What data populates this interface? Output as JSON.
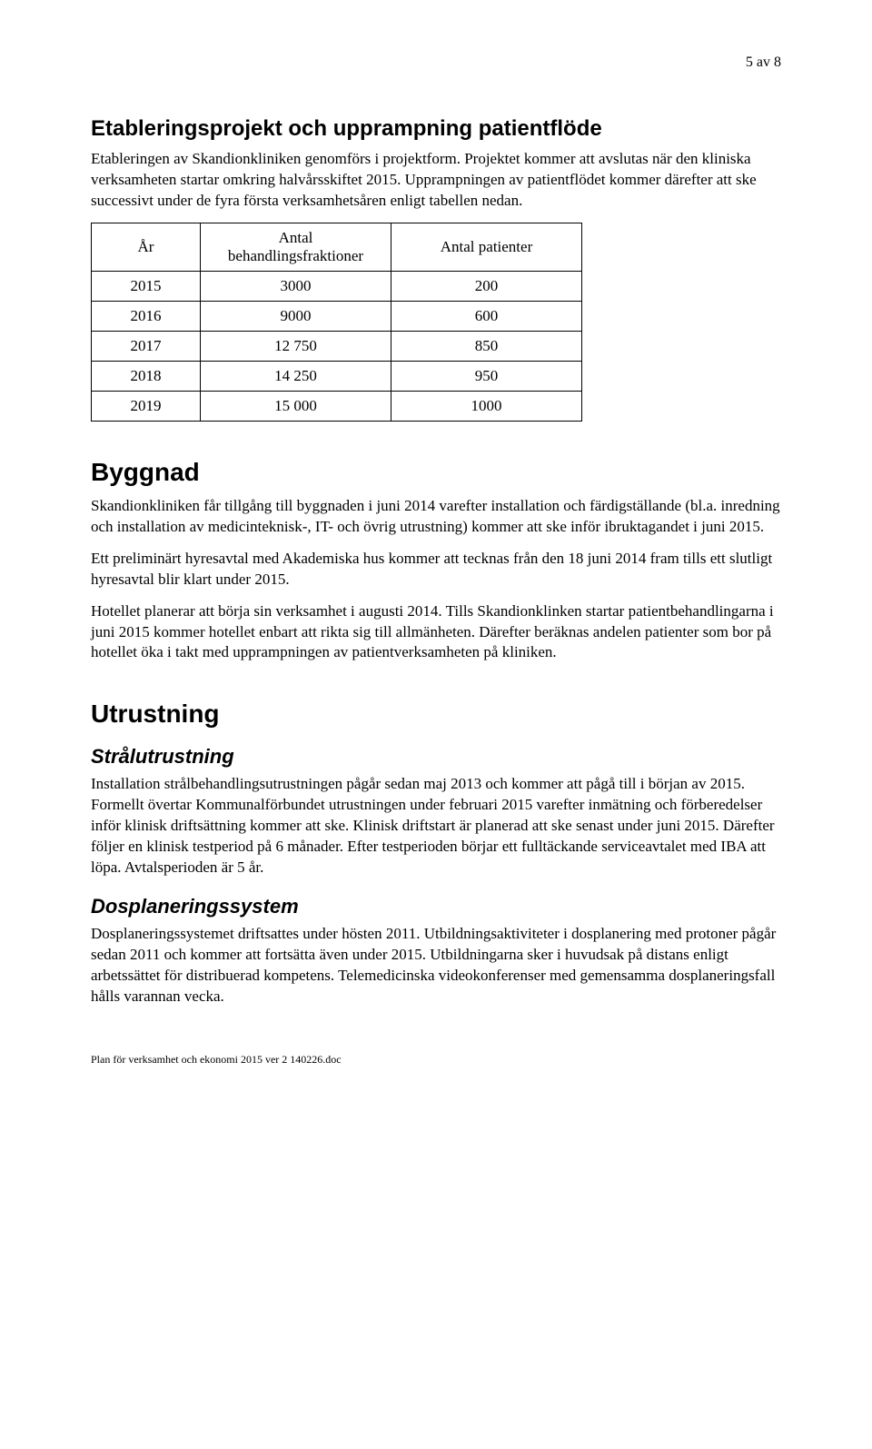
{
  "page_number": "5 av 8",
  "section1": {
    "heading": "Etableringsprojekt och upprampning patientflöde",
    "para1": "Etableringen av Skandionkliniken genomförs i projektform. Projektet kommer att avslutas när den kliniska verksamheten startar omkring halvårsskiftet 2015. Upprampningen av patientflödet kommer därefter att ske successivt under de fyra första verksamhetsåren enligt tabellen nedan."
  },
  "table": {
    "columns": [
      "År",
      "Antal behandlingsfraktioner",
      "Antal patienter"
    ],
    "rows": [
      [
        "2015",
        "3000",
        "200"
      ],
      [
        "2016",
        "9000",
        "600"
      ],
      [
        "2017",
        "12 750",
        "850"
      ],
      [
        "2018",
        "14 250",
        "950"
      ],
      [
        "2019",
        "15 000",
        "1000"
      ]
    ]
  },
  "section2": {
    "heading": "Byggnad",
    "para1": "Skandionkliniken får tillgång till byggnaden i juni 2014 varefter installation och färdigställande (bl.a. inredning och installation av medicinteknisk-, IT- och övrig utrustning) kommer att ske inför ibruktagandet i juni 2015.",
    "para2": "Ett preliminärt hyresavtal med Akademiska hus kommer att tecknas från den 18 juni 2014 fram tills ett slutligt hyresavtal blir klart under 2015.",
    "para3": "Hotellet planerar att börja sin verksamhet i augusti 2014. Tills Skandionklinken startar patientbehandlingarna i juni 2015 kommer hotellet enbart att rikta sig till allmänheten. Därefter beräknas andelen patienter som bor på hotellet öka i takt med upprampningen av patientverksamheten på kliniken."
  },
  "section3": {
    "heading": "Utrustning",
    "sub1": {
      "heading": "Strålutrustning",
      "para1": "Installation strålbehandlingsutrustningen pågår sedan maj 2013 och kommer att pågå till i början av 2015. Formellt övertar Kommunalförbundet utrustningen under februari 2015 varefter inmätning och förberedelser inför klinisk driftsättning kommer att ske. Klinisk driftstart är planerad att ske senast under juni 2015. Därefter följer en klinisk testperiod på 6 månader. Efter testperioden börjar ett fulltäckande serviceavtalet med IBA att löpa. Avtalsperioden är 5 år."
    },
    "sub2": {
      "heading": "Dosplaneringssystem",
      "para1": "Dosplaneringssystemet driftsattes under hösten 2011. Utbildningsaktiviteter i dosplanering med protoner pågår sedan 2011 och kommer att fortsätta även under 2015. Utbildningarna sker i huvudsak på distans enligt arbetssättet för distribuerad kompetens. Telemedicinska videokonferenser med gemensamma dosplaneringsfall hålls varannan vecka."
    }
  },
  "footer": "Plan för verksamhet och ekonomi 2015 ver 2 140226.doc"
}
